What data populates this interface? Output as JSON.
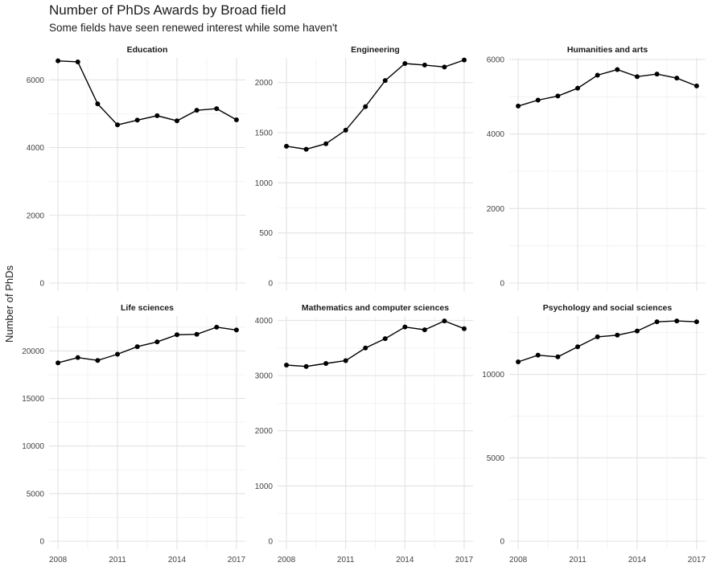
{
  "title": "Number of PhDs Awards by Broad field",
  "subtitle": "Some fields have seen renewed interest while some haven't",
  "chart_data": {
    "type": "line",
    "ylabel": "Number of PhDs",
    "x": [
      2008,
      2009,
      2010,
      2011,
      2012,
      2013,
      2014,
      2015,
      2016,
      2017
    ],
    "x_ticks": [
      2008,
      2011,
      2014,
      2017
    ],
    "grid": true,
    "facets": [
      {
        "name": "Education",
        "values": [
          6560,
          6530,
          5290,
          4670,
          4810,
          4940,
          4790,
          5100,
          5150,
          4820
        ],
        "ylim": [
          0,
          6600
        ],
        "y_ticks": [
          0,
          2000,
          4000,
          6000
        ]
      },
      {
        "name": "Engineering",
        "values": [
          1365,
          1335,
          1390,
          1525,
          1760,
          2020,
          2190,
          2175,
          2155,
          2225
        ],
        "ylim": [
          0,
          2230
        ],
        "y_ticks": [
          0,
          500,
          1000,
          1500,
          2000
        ]
      },
      {
        "name": "Humanities and arts",
        "values": [
          4750,
          4910,
          5020,
          5230,
          5580,
          5730,
          5540,
          5610,
          5500,
          5290
        ],
        "ylim": [
          0,
          6000
        ],
        "y_ticks": [
          0,
          2000,
          4000,
          6000
        ]
      },
      {
        "name": "Life sciences",
        "values": [
          18750,
          19300,
          19000,
          19650,
          20450,
          20950,
          21700,
          21750,
          22500,
          22200
        ],
        "ylim": [
          0,
          23500
        ],
        "y_ticks": [
          0,
          5000,
          10000,
          15000,
          20000
        ]
      },
      {
        "name": "Mathematics and computer sciences",
        "values": [
          3190,
          3165,
          3220,
          3270,
          3500,
          3670,
          3880,
          3830,
          3990,
          3850
        ],
        "ylim": [
          0,
          4050
        ],
        "y_ticks": [
          0,
          1000,
          2000,
          3000,
          4000
        ]
      },
      {
        "name": "Psychology and social sciences",
        "values": [
          10750,
          11150,
          11050,
          11650,
          12250,
          12350,
          12600,
          13150,
          13200,
          13150
        ],
        "ylim": [
          0,
          13400
        ],
        "y_ticks": [
          0,
          5000,
          10000
        ]
      }
    ]
  }
}
